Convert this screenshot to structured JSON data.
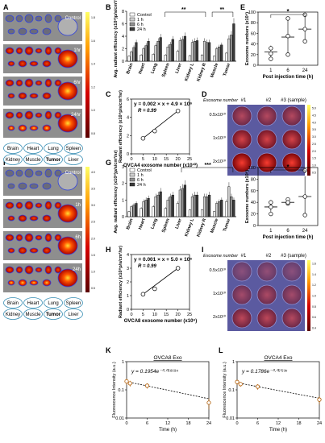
{
  "panel_letters": [
    "A",
    "B",
    "C",
    "D",
    "E",
    "F",
    "G",
    "H",
    "I",
    "J",
    "K",
    "L"
  ],
  "imaging_A": {
    "time_labels": [
      "Control",
      "1hr",
      "6hr",
      "24hr"
    ],
    "organ_legend_top": [
      "Brain",
      "Heart",
      "Lung",
      "Spleen"
    ],
    "organ_legend_bottom": [
      "Kidney",
      "Muscle",
      "Tumor",
      "Liver"
    ],
    "colorbar_ticks": [
      "1.8",
      "1.6",
      "1.4",
      "1.2",
      "1.0",
      "0.8"
    ]
  },
  "imaging_F": {
    "time_labels": [
      "Control",
      "1h",
      "6h",
      "24h"
    ],
    "organ_legend_top": [
      "Brain",
      "Heart",
      "Lung",
      "Spleen"
    ],
    "organ_legend_bottom": [
      "Kidney",
      "Muscle",
      "Tumor",
      "Liver"
    ],
    "colorbar_ticks": [
      "4.0",
      "3.5",
      "3.0",
      "2.5",
      "2.0",
      "1.5",
      "1.0",
      "0.5"
    ]
  },
  "plate_D": {
    "header_label": "Exosome number",
    "col_labels": [
      "#1",
      "#2",
      "#3 (sample)"
    ],
    "row_labels": [
      "0.5x10¹⁰",
      "1x10¹⁰",
      "2x10¹⁰"
    ],
    "intensity": [
      [
        0.55,
        0.55,
        0.55
      ],
      [
        0.75,
        0.75,
        0.75
      ],
      [
        0.95,
        0.95,
        0.95
      ]
    ],
    "colorbar_ticks": [
      "5.0",
      "4.5",
      "4.0",
      "3.5",
      "3.0",
      "2.5",
      "2.0",
      "1.5",
      "1.0",
      "0.5"
    ]
  },
  "plate_I": {
    "header_label": "Exosome number",
    "col_labels": [
      "#1",
      "#2",
      "#3 (sample)"
    ],
    "row_labels": [
      "0.5x10¹⁰",
      "1x10¹⁰",
      "2x10¹⁰"
    ],
    "intensity": [
      [
        0.3,
        0.35,
        0.3
      ],
      [
        0.45,
        0.5,
        0.45
      ],
      [
        0.6,
        0.6,
        0.55
      ]
    ],
    "colorbar_ticks": [
      "1.6",
      "1.4",
      "1.2",
      "1.0",
      "0.8",
      "0.6",
      "0.4"
    ]
  },
  "chart_data": [
    {
      "id": "B",
      "type": "bar",
      "ylabel": "Avg. radiant efficiency (x10⁸)p/s/cm²/sr)",
      "categories": [
        "Brain",
        "Heart",
        "Lung",
        "Spleen",
        "Liver",
        "Kidney L",
        "Kidney R",
        "Muscle",
        "Tumor"
      ],
      "series": [
        {
          "name": "Control",
          "color": "#ffffff",
          "values": [
            0.8,
            1.0,
            1.1,
            1.0,
            1.6,
            0.9,
            1.0,
            0.8,
            1.3
          ]
        },
        {
          "name": "1 h",
          "color": "#cfcfcf",
          "values": [
            1.5,
            2.0,
            2.5,
            2.3,
            3.3,
            3.0,
            3.2,
            2.0,
            3.6
          ]
        },
        {
          "name": "6 h",
          "color": "#8f8f8f",
          "values": [
            2.2,
            2.5,
            3.2,
            2.7,
            3.5,
            3.2,
            3.0,
            2.3,
            4.2
          ]
        },
        {
          "name": "24 h",
          "color": "#3a3a3a",
          "values": [
            3.0,
            3.2,
            3.8,
            3.5,
            4.0,
            3.3,
            3.0,
            2.6,
            6.0
          ]
        }
      ],
      "ylim": [
        0,
        8
      ],
      "yticks": [
        0,
        2,
        4,
        6,
        8
      ],
      "legend": "top-left",
      "significance": [
        "**",
        "**"
      ]
    },
    {
      "id": "C",
      "type": "scatter",
      "xlabel": "OVCA4 exosome number (x10¹⁰)",
      "ylabel": "Radiant efficiency (x10⁸p/s/cm²/sr)",
      "x": [
        5,
        10,
        20
      ],
      "y": [
        1.7,
        2.5,
        4.7
      ],
      "xlim": [
        0,
        25
      ],
      "ylim": [
        0,
        6
      ],
      "xticks": [
        0,
        5,
        10,
        15,
        20,
        25
      ],
      "yticks": [
        0,
        2,
        4,
        6
      ],
      "equation": "y = 0.002 × x + 4.9 × 10⁶",
      "r_label": "R = 0.99"
    },
    {
      "id": "E",
      "type": "scatter",
      "xlabel": "Post injection time (h)",
      "ylabel": "Exosome numbers (x10⁹)",
      "categories": [
        "1",
        "6",
        "24"
      ],
      "points": [
        [
          22,
          32,
          12
        ],
        [
          20,
          55,
          88
        ],
        [
          45,
          68,
          95
        ]
      ],
      "means": [
        25,
        53,
        68
      ],
      "sd": [
        12,
        35,
        26
      ],
      "ylim": [
        0,
        100
      ],
      "yticks": [
        0,
        20,
        40,
        60,
        80,
        100
      ],
      "significance": "*"
    },
    {
      "id": "G",
      "type": "bar",
      "ylabel": "Avg. radiant efficiency (x10⁸)p/s/cm²/sr)",
      "categories": [
        "Brain",
        "Heart",
        "Lung",
        "Spleen",
        "Liver",
        "Kidney L",
        "Kidney R",
        "Muscle",
        "Tumor"
      ],
      "series": [
        {
          "name": "Control",
          "color": "#ffffff",
          "values": [
            0.3,
            0.5,
            0.6,
            0.5,
            0.8,
            0.4,
            0.4,
            0.3,
            0.9
          ]
        },
        {
          "name": "1 h",
          "color": "#cfcfcf",
          "values": [
            0.6,
            0.9,
            1.2,
            1.0,
            1.6,
            1.2,
            1.2,
            0.8,
            1.8
          ]
        },
        {
          "name": "6 h",
          "color": "#8f8f8f",
          "values": [
            0.7,
            1.0,
            1.3,
            1.2,
            1.7,
            1.3,
            1.2,
            0.9,
            1.2
          ]
        },
        {
          "name": "24 h",
          "color": "#3a3a3a",
          "values": [
            0.8,
            1.1,
            1.5,
            1.3,
            1.9,
            1.3,
            1.3,
            1.0,
            1.0
          ]
        }
      ],
      "ylim": [
        0,
        3
      ],
      "yticks": [
        0,
        1,
        2,
        3
      ],
      "legend": "top-left",
      "significance": [
        "***"
      ]
    },
    {
      "id": "H",
      "type": "scatter",
      "xlabel": "OVCA8 exosome number (x10⁹)",
      "ylabel": "Radiant efficiency (x10⁸p/s/cm²/sr)",
      "x": [
        5,
        10,
        20
      ],
      "y": [
        1.1,
        1.5,
        3.0
      ],
      "xlim": [
        0,
        25
      ],
      "ylim": [
        0,
        4
      ],
      "xticks": [
        0,
        5,
        10,
        15,
        20,
        25
      ],
      "yticks": [
        0,
        1,
        2,
        3,
        4
      ],
      "equation": "y = 0.001 × x + 5.0 × 10⁶",
      "r_label": "R = 0.99"
    },
    {
      "id": "J",
      "type": "scatter",
      "xlabel": "Post injection time (h)",
      "ylabel": "Exosome numbers (x10⁹)",
      "categories": [
        "1",
        "6",
        "24"
      ],
      "points": [
        [
          40,
          32,
          20
        ],
        [
          38,
          45,
          40
        ],
        [
          18,
          50,
          95
        ]
      ],
      "means": [
        32,
        40,
        50
      ],
      "sd": [
        12,
        6,
        35
      ],
      "ylim": [
        0,
        100
      ],
      "yticks": [
        0,
        20,
        40,
        60,
        80,
        100
      ],
      "significance": "*"
    },
    {
      "id": "K",
      "type": "line",
      "title": "OVCA8 Exo",
      "xlabel": "Time (h)",
      "ylabel": "Fluorescence Intensity (a.u.)",
      "x": [
        0,
        1,
        6,
        24
      ],
      "y": [
        0.2,
        0.17,
        0.14,
        0.035
      ],
      "err": [
        0.05,
        0.04,
        0.03,
        0.015
      ],
      "xlim": [
        0,
        24
      ],
      "ylim_log": [
        0.01,
        1
      ],
      "xticks": [
        0,
        6,
        12,
        18,
        24
      ],
      "yticks_log": [
        0.01,
        0.1,
        1
      ],
      "ytick_labels": [
        "0.01",
        "0.1",
        "1"
      ],
      "equation": "y = 0.1954e⁻⁰·⁰⁵⁸¹⁹ˣ",
      "fit_a": 0.1954,
      "fit_k": 0.05819
    },
    {
      "id": "L",
      "type": "line",
      "title": "OVCA4 Exo",
      "xlabel": "Time (h)",
      "ylabel": "Fluorescence Intensity (a.u.)",
      "x": [
        0,
        1,
        6,
        24
      ],
      "y": [
        0.19,
        0.16,
        0.13,
        0.045
      ],
      "err": [
        0.04,
        0.03,
        0.03,
        0.015
      ],
      "xlim": [
        0,
        24
      ],
      "ylim_log": [
        0.01,
        1
      ],
      "xticks": [
        0,
        6,
        12,
        18,
        24
      ],
      "yticks_log": [
        0.01,
        0.1,
        1
      ],
      "ytick_labels": [
        "0.01",
        "0.1",
        "1"
      ],
      "equation": "y = 0.1786e⁻⁰·⁰⁵′⁵³ˣ",
      "fit_a": 0.1786,
      "fit_k": 0.05253
    }
  ]
}
